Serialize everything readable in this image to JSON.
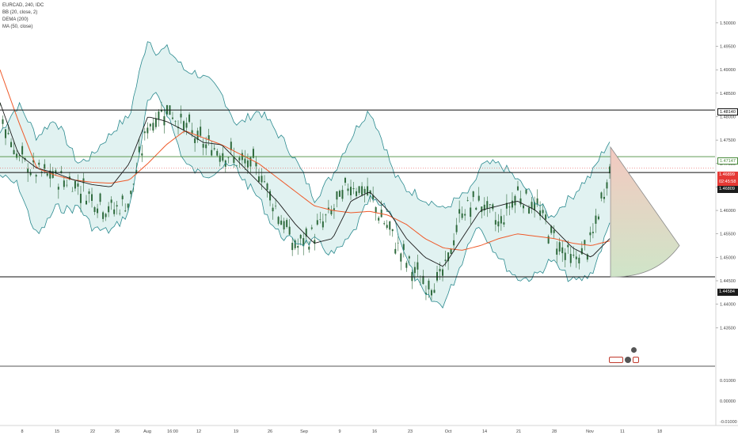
{
  "legend": {
    "symbol": "EURCAD, 240, IDC",
    "bb": "BB (20, close, 2)",
    "dema": "DEMA (200)",
    "ma": "MA (50, close)"
  },
  "colors": {
    "candle": "#2f6b3d",
    "bb_line": "#2b8a8f",
    "bb_fill": "#d9efee",
    "dema_line": "#ef5a2a",
    "ma_line": "#1c1c1c",
    "level_line": "#111111",
    "green_level": "#4a8c3c",
    "red_badge": "#e53935",
    "triangle_top": "#f3c9c0",
    "triangle_bottom": "#cfe5c8",
    "triangle_edge": "#8a8a8a"
  },
  "price_badges": {
    "level_upper": "1.48140",
    "level_green": "1.47147",
    "current": "1.46899",
    "countdown": "02:45:58",
    "level_mid": "1.46809",
    "level_lower": "1.44584"
  },
  "chart_data": {
    "type": "line",
    "title": "EURCAD, 240, IDC",
    "y_ticks_main": [
      "1.50000",
      "1.49500",
      "1.49000",
      "1.48500",
      "1.48000",
      "1.47500",
      "1.47000",
      "1.46500",
      "1.46000",
      "1.45500",
      "1.45000",
      "1.44500",
      "1.44000",
      "1.43500"
    ],
    "y_ticks_sub": [
      "0.01000",
      "0.00000",
      "-0.01000"
    ],
    "x_ticks": [
      "8",
      "15",
      "22",
      "26",
      "Aug",
      "16:00",
      "12",
      "19",
      "26",
      "Sep",
      "9",
      "16",
      "23",
      "Oct",
      "14",
      "21",
      "28",
      "Nov",
      "11",
      "18"
    ],
    "ylim": [
      1.431,
      1.5015
    ],
    "horizontal_levels": [
      1.4814,
      1.47147,
      1.46809,
      1.44584
    ],
    "current_price": 1.46899,
    "projection_triangle": {
      "apex_price": 1.4735,
      "lower_price": 1.44584,
      "right_price": 1.4525
    },
    "series": [
      {
        "name": "BB (20, close, 2)",
        "values": [
          1.472,
          1.474,
          1.465,
          1.47,
          1.466,
          1.464,
          1.466,
          1.47,
          1.49,
          1.488,
          1.48,
          1.478,
          1.477,
          1.473,
          1.472,
          1.466,
          1.462,
          1.458,
          1.459,
          1.465,
          1.472,
          1.466,
          1.457,
          1.452,
          1.45,
          1.456,
          1.463,
          1.46,
          1.456,
          1.454,
          1.454,
          1.454,
          1.457,
          1.466
        ]
      },
      {
        "name": "DEMA (200)",
        "values": [
          1.49,
          1.479,
          1.469,
          1.4675,
          1.4665,
          1.466,
          1.4658,
          1.4665,
          1.47,
          1.474,
          1.477,
          1.4755,
          1.474,
          1.472,
          1.47,
          1.467,
          1.464,
          1.461,
          1.46,
          1.4595,
          1.4598,
          1.459,
          1.457,
          1.454,
          1.452,
          1.4515,
          1.4525,
          1.454,
          1.455,
          1.4545,
          1.454,
          1.453,
          1.4525,
          1.4535
        ]
      },
      {
        "name": "MA (50, close)",
        "values": [
          1.483,
          1.472,
          1.469,
          1.468,
          1.4665,
          1.4655,
          1.465,
          1.47,
          1.48,
          1.479,
          1.477,
          1.4745,
          1.474,
          1.47,
          1.466,
          1.462,
          1.457,
          1.453,
          1.454,
          1.462,
          1.464,
          1.46,
          1.454,
          1.45,
          1.448,
          1.454,
          1.46,
          1.461,
          1.462,
          1.46,
          1.456,
          1.452,
          1.45,
          1.454
        ]
      },
      {
        "name": "Close",
        "values": [
          1.481,
          1.471,
          1.468,
          1.467,
          1.466,
          1.463,
          1.46,
          1.462,
          1.478,
          1.482,
          1.478,
          1.474,
          1.473,
          1.47,
          1.469,
          1.46,
          1.452,
          1.455,
          1.46,
          1.466,
          1.463,
          1.456,
          1.449,
          1.444,
          1.446,
          1.46,
          1.462,
          1.457,
          1.464,
          1.461,
          1.454,
          1.449,
          1.453,
          1.469
        ]
      }
    ]
  }
}
